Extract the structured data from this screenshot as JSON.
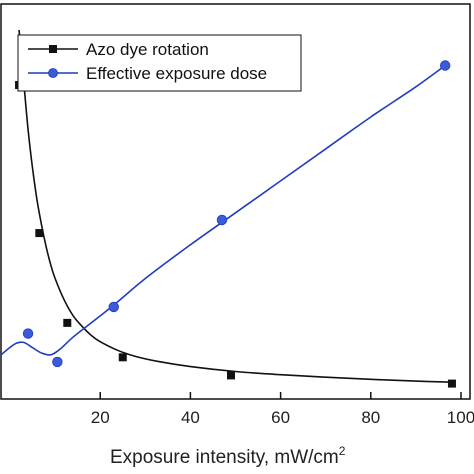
{
  "chart_data": {
    "type": "scatter",
    "xlabel": "Exposure intensity, mW/cm",
    "xlabel_superscript": "2",
    "xlim": [
      -2,
      102
    ],
    "ylim": [
      0,
      1
    ],
    "x_ticks": [
      "20",
      "40",
      "60",
      "80",
      "100"
    ],
    "x_tick_values": [
      20,
      40,
      60,
      80,
      100
    ],
    "legend_placement": "top-center",
    "grid": false,
    "series": [
      {
        "name": "Azo dye rotation",
        "color": "#111111",
        "marker": "square",
        "points": [
          [
            2,
            0.845
          ],
          [
            6.5,
            0.428
          ],
          [
            12.7,
            0.175
          ],
          [
            25,
            0.078
          ],
          [
            49,
            0.027
          ],
          [
            98,
            0.004
          ]
        ],
        "fit_curve": [
          [
            2,
            1.0
          ],
          [
            3,
            0.86
          ],
          [
            4,
            0.72
          ],
          [
            5,
            0.61
          ],
          [
            6,
            0.52
          ],
          [
            7,
            0.45
          ],
          [
            8,
            0.39
          ],
          [
            9,
            0.34
          ],
          [
            10,
            0.3
          ],
          [
            12,
            0.24
          ],
          [
            14,
            0.195
          ],
          [
            16,
            0.165
          ],
          [
            18,
            0.14
          ],
          [
            20,
            0.122
          ],
          [
            24,
            0.097
          ],
          [
            28,
            0.08
          ],
          [
            33,
            0.066
          ],
          [
            40,
            0.052
          ],
          [
            50,
            0.038
          ],
          [
            60,
            0.029
          ],
          [
            70,
            0.022
          ],
          [
            80,
            0.016
          ],
          [
            90,
            0.011
          ],
          [
            98,
            0.008
          ]
        ]
      },
      {
        "name": "Effective exposure dose",
        "color": "#1f3dbf",
        "marker": "circle",
        "points": [
          [
            4,
            0.145
          ],
          [
            10.5,
            0.065
          ],
          [
            23,
            0.22
          ],
          [
            47,
            0.465
          ],
          [
            96.5,
            0.9
          ]
        ],
        "fit_curve": [
          [
            -2,
            0.085
          ],
          [
            1,
            0.115
          ],
          [
            3,
            0.12
          ],
          [
            5,
            0.105
          ],
          [
            7,
            0.09
          ],
          [
            9,
            0.085
          ],
          [
            11,
            0.1
          ],
          [
            14,
            0.135
          ],
          [
            18,
            0.175
          ],
          [
            23,
            0.225
          ],
          [
            30,
            0.3
          ],
          [
            40,
            0.395
          ],
          [
            50,
            0.485
          ],
          [
            60,
            0.575
          ],
          [
            70,
            0.665
          ],
          [
            80,
            0.755
          ],
          [
            90,
            0.84
          ],
          [
            96.5,
            0.9
          ]
        ]
      }
    ]
  }
}
